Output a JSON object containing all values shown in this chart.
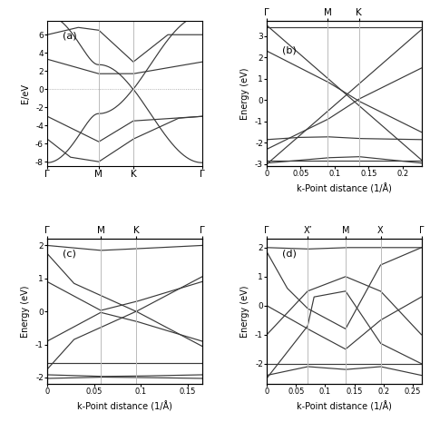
{
  "panel_a": {
    "ylabel": "E/eV",
    "ylim": [
      -8.5,
      7.5
    ],
    "yticks": [
      -8,
      -6,
      -4,
      -2,
      0,
      2,
      4,
      6
    ],
    "xM": 0.333,
    "xK": 0.556,
    "kpoints": [
      "Γ",
      "M",
      "K",
      "Γ"
    ]
  },
  "panel_b": {
    "ylabel": "Energy (eV)",
    "xlabel": "k-Point distance (1/Å)",
    "ylim": [
      -3.1,
      3.7
    ],
    "yticks": [
      -3,
      -2,
      -1,
      0,
      1,
      2,
      3
    ],
    "xlim": [
      0,
      0.228
    ],
    "xticks": [
      0,
      0.05,
      0.1,
      0.15,
      0.2
    ],
    "xticklabels": [
      "0",
      "0.05",
      "0.1",
      "0.15",
      "0.2"
    ],
    "kM": 0.09,
    "kK": 0.136,
    "kpoints_top": [
      "Γ",
      "M",
      "K"
    ]
  },
  "panel_c": {
    "ylabel": "Energy (eV)",
    "xlabel": "k-Point distance (1/Å)",
    "ylim": [
      -2.2,
      2.2
    ],
    "yticks": [
      -2,
      -1,
      0,
      1,
      2
    ],
    "xlim": [
      0,
      0.165
    ],
    "xticks": [
      0,
      0.05,
      0.1,
      0.15
    ],
    "xticklabels": [
      "0",
      "0.05",
      "0.1",
      "0.15"
    ],
    "kM": 0.057,
    "kK": 0.095,
    "kG2": 0.165,
    "kpoints_top": [
      "Γ",
      "M",
      "K",
      "Γ"
    ]
  },
  "panel_d": {
    "ylabel": "Energy (eV)",
    "xlabel": "k-Point distance (1/Å)",
    "ylim": [
      -2.7,
      2.3
    ],
    "yticks": [
      -2,
      -1,
      0,
      1,
      2
    ],
    "xlim": [
      0,
      0.265
    ],
    "xticks": [
      0,
      0.05,
      0.1,
      0.15,
      0.2,
      0.25
    ],
    "xticklabels": [
      "0",
      "0.05",
      "0.1",
      "0.15",
      "0.2",
      "0.25"
    ],
    "kXp": 0.07,
    "kM": 0.135,
    "kX": 0.195,
    "kG2": 0.265,
    "kpoints_top": [
      "Γ",
      "X’",
      "M",
      "X",
      "Γ"
    ]
  },
  "line_color": "#3a3a3a",
  "vline_color": "#bbbbbb",
  "bg_color": "#ffffff",
  "lw": 0.85
}
